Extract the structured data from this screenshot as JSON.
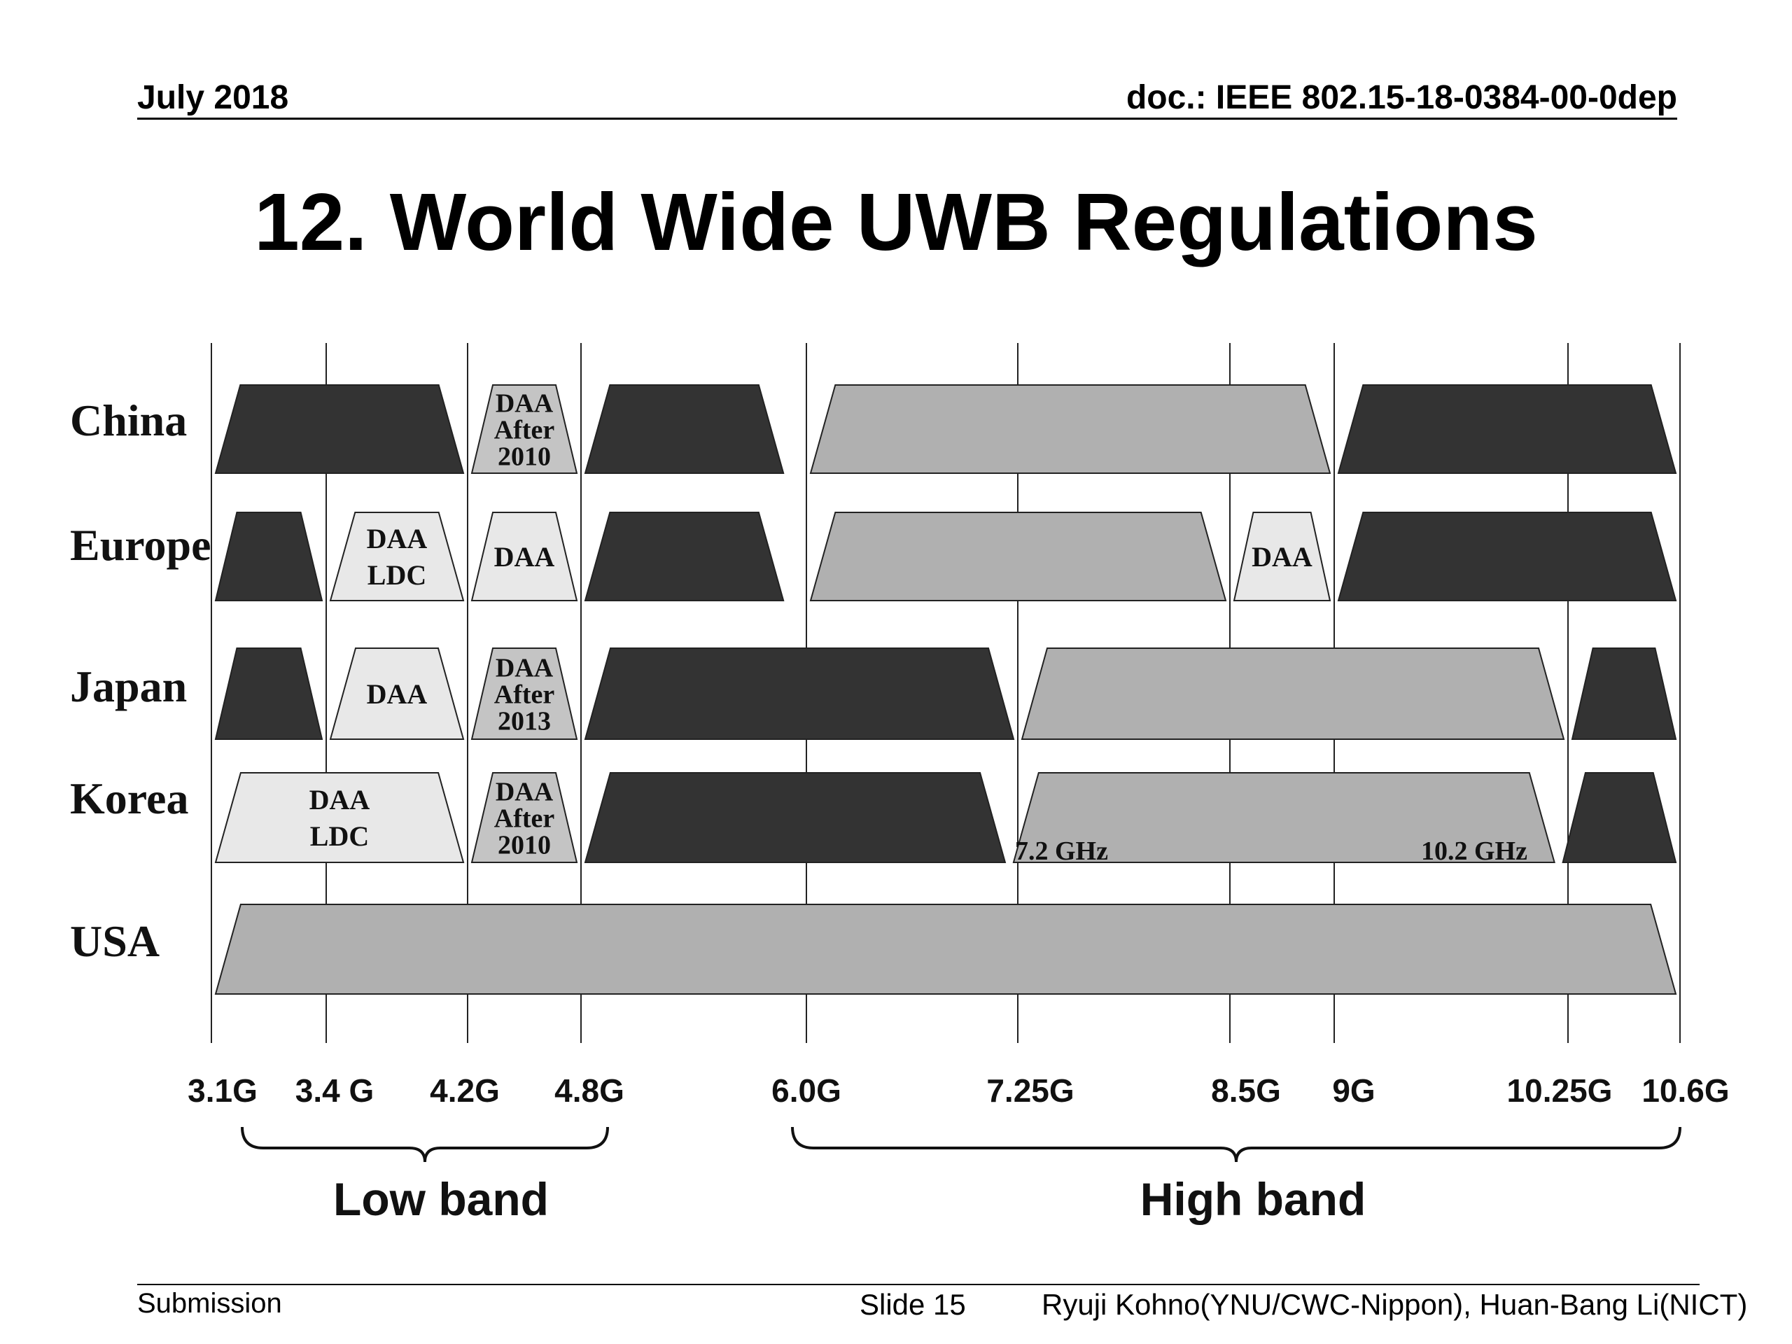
{
  "header": {
    "date": "July 2018",
    "doc": "doc.: IEEE 802.15-18-0384-00-0dep"
  },
  "title": "12. World Wide UWB Regulations",
  "colors": {
    "dark": "#333333",
    "medium": "#b0b0b0",
    "light": "#e8e8e8",
    "daa_dark": "#c4c4c4"
  },
  "diagram": {
    "frequency_ticks": [
      {
        "label": "3.1G"
      },
      {
        "label": "3.4 G"
      },
      {
        "label": "4.2G"
      },
      {
        "label": "4.8G"
      },
      {
        "label": "6.0G"
      },
      {
        "label": "7.25G"
      },
      {
        "label": "8.5G"
      },
      {
        "label": "9G"
      },
      {
        "label": "10.25G"
      },
      {
        "label": "10.6G"
      }
    ],
    "bands": [
      {
        "label": "Low band"
      },
      {
        "label": "High band"
      }
    ],
    "regions": [
      {
        "name": "China",
        "blocks": [
          {
            "from_ghz": 3.1,
            "to_ghz": 4.2,
            "shade": "dark",
            "label": []
          },
          {
            "from_ghz": 4.2,
            "to_ghz": 4.8,
            "shade": "daa_dark",
            "label": [
              "DAA",
              "After",
              "2010"
            ]
          },
          {
            "from_ghz": 4.8,
            "to_ghz": 5.9,
            "shade": "dark",
            "label": []
          },
          {
            "from_ghz": 6.0,
            "to_ghz": 9.0,
            "shade": "medium",
            "label": []
          },
          {
            "from_ghz": 9.0,
            "to_ghz": 10.6,
            "shade": "dark",
            "label": []
          }
        ]
      },
      {
        "name": "Europe",
        "blocks": [
          {
            "from_ghz": 3.1,
            "to_ghz": 3.4,
            "shade": "dark",
            "label": []
          },
          {
            "from_ghz": 3.4,
            "to_ghz": 4.2,
            "shade": "light",
            "label": [
              "DAA",
              "LDC"
            ]
          },
          {
            "from_ghz": 4.2,
            "to_ghz": 4.8,
            "shade": "light",
            "label": [
              "DAA"
            ]
          },
          {
            "from_ghz": 4.8,
            "to_ghz": 5.9,
            "shade": "dark",
            "label": []
          },
          {
            "from_ghz": 6.0,
            "to_ghz": 8.5,
            "shade": "medium",
            "label": []
          },
          {
            "from_ghz": 8.5,
            "to_ghz": 9.0,
            "shade": "light",
            "label": [
              "DAA"
            ]
          },
          {
            "from_ghz": 9.0,
            "to_ghz": 10.6,
            "shade": "dark",
            "label": []
          }
        ]
      },
      {
        "name": "Japan",
        "blocks": [
          {
            "from_ghz": 3.1,
            "to_ghz": 3.4,
            "shade": "dark",
            "label": []
          },
          {
            "from_ghz": 3.4,
            "to_ghz": 4.2,
            "shade": "light",
            "label": [
              "DAA"
            ]
          },
          {
            "from_ghz": 4.2,
            "to_ghz": 4.8,
            "shade": "daa_dark",
            "label": [
              "DAA",
              "After",
              "2013"
            ]
          },
          {
            "from_ghz": 4.8,
            "to_ghz": 7.25,
            "shade": "dark",
            "label": []
          },
          {
            "from_ghz": 7.25,
            "to_ghz": 10.25,
            "shade": "medium",
            "label": []
          },
          {
            "from_ghz": 10.25,
            "to_ghz": 10.6,
            "shade": "dark",
            "label": []
          }
        ]
      },
      {
        "name": "Korea",
        "blocks": [
          {
            "from_ghz": 3.1,
            "to_ghz": 4.2,
            "shade": "light",
            "label": [
              "DAA",
              "LDC"
            ]
          },
          {
            "from_ghz": 4.2,
            "to_ghz": 4.8,
            "shade": "daa_dark",
            "label": [
              "DAA",
              "After",
              "2010"
            ]
          },
          {
            "from_ghz": 4.8,
            "to_ghz": 7.2,
            "shade": "dark",
            "label": []
          },
          {
            "from_ghz": 7.2,
            "to_ghz": 10.2,
            "shade": "medium",
            "label": []
          },
          {
            "from_ghz": 10.2,
            "to_ghz": 10.6,
            "shade": "dark",
            "label": []
          }
        ],
        "annotations": [
          "7.2 GHz",
          "10.2 GHz"
        ]
      },
      {
        "name": "USA",
        "blocks": [
          {
            "from_ghz": 3.1,
            "to_ghz": 10.6,
            "shade": "medium",
            "label": []
          }
        ]
      }
    ]
  },
  "footer": {
    "left": "Submission",
    "slide": "Slide 15",
    "authors": "Ryuji Kohno(YNU/CWC-Nippon), Huan-Bang Li(NICT)"
  }
}
